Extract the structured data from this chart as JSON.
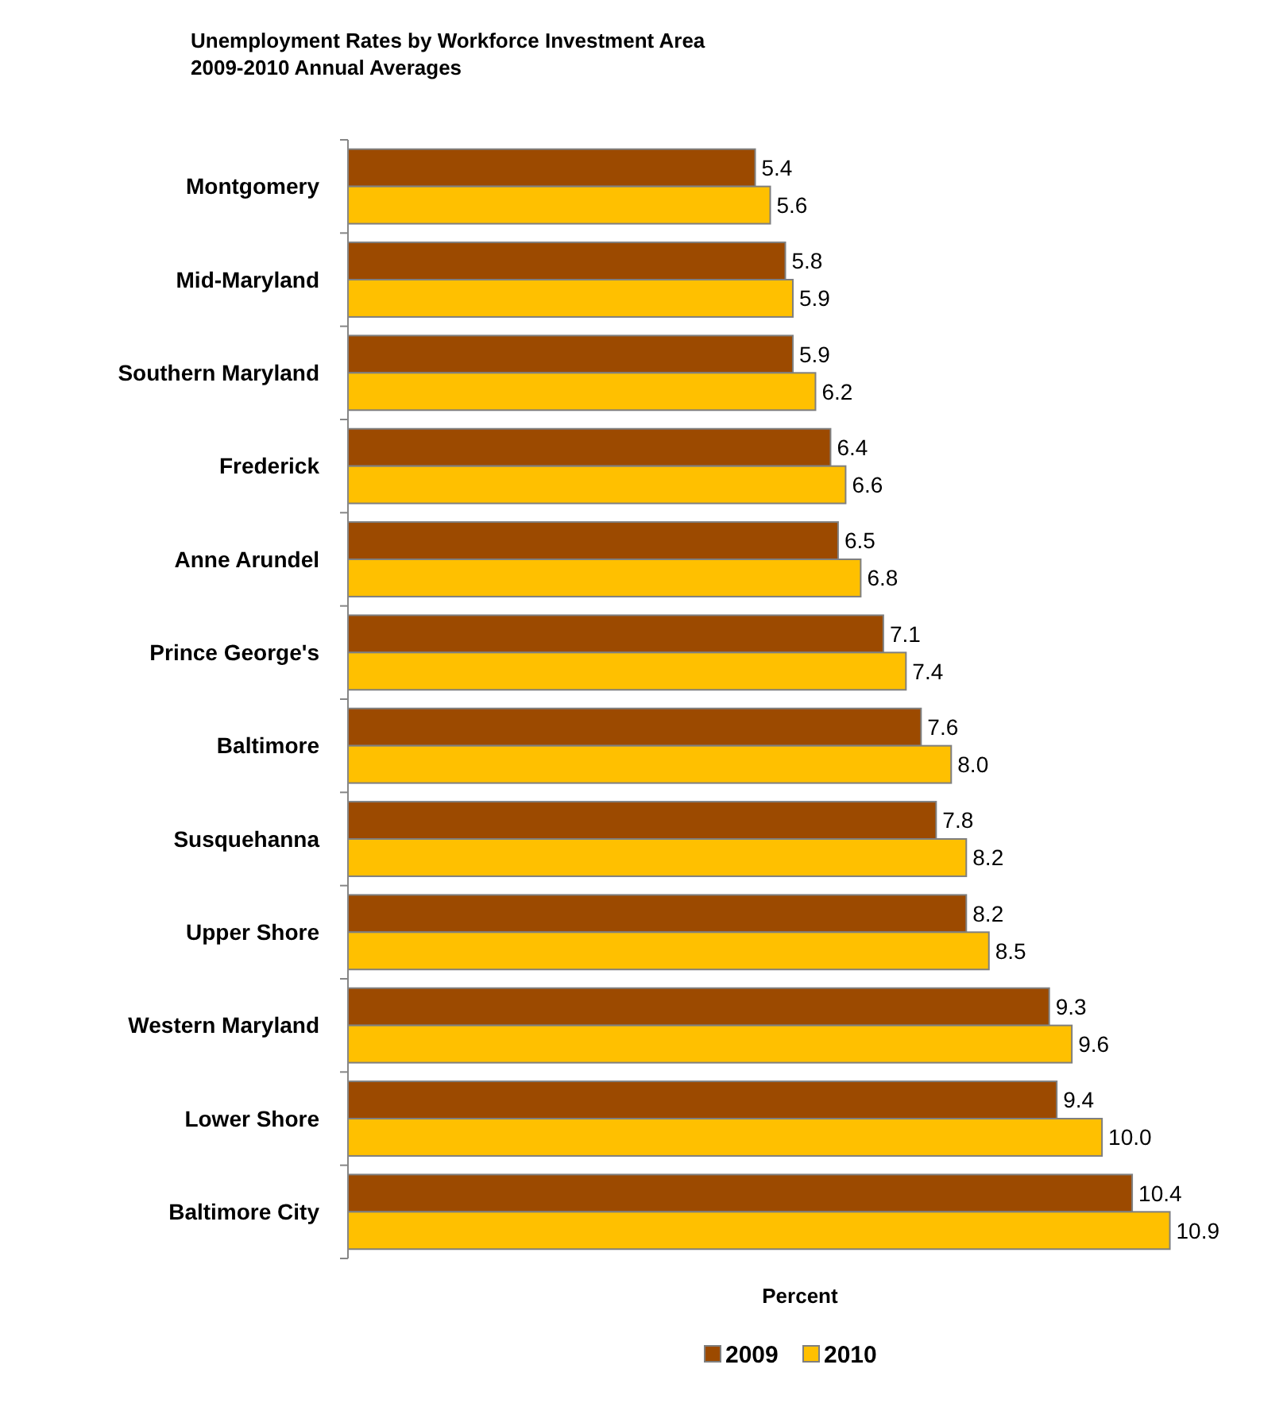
{
  "chart_data": {
    "type": "bar",
    "orientation": "horizontal",
    "title": "Unemployment Rates by Workforce Investment Area\n2009-2010 Annual Averages",
    "xlabel": "Percent",
    "categories": [
      "Montgomery",
      "Mid-Maryland",
      "Southern Maryland",
      "Frederick",
      "Anne Arundel",
      "Prince George's",
      "Baltimore",
      "Susquehanna",
      "Upper Shore",
      "Western Maryland",
      "Lower Shore",
      "Baltimore City"
    ],
    "series": [
      {
        "name": "2009",
        "color": "#9c4a00",
        "values": [
          5.4,
          5.8,
          5.9,
          6.4,
          6.5,
          7.1,
          7.6,
          7.8,
          8.2,
          9.3,
          9.4,
          10.4
        ],
        "value_labels": [
          "5.4",
          "5.8",
          "5.9",
          "6.4",
          "6.5",
          "7.1",
          "7.6",
          "7.8",
          "8.2",
          "9.3",
          "9.4",
          "10.4"
        ]
      },
      {
        "name": "2010",
        "color": "#ffc000",
        "values": [
          5.6,
          5.9,
          6.2,
          6.6,
          6.8,
          7.4,
          8.0,
          8.2,
          8.5,
          9.6,
          10.0,
          10.9
        ],
        "value_labels": [
          "5.6",
          "5.9",
          "6.2",
          "6.6",
          "6.8",
          "7.4",
          "8.0",
          "8.2",
          "8.5",
          "9.6",
          "10.0",
          "10.9"
        ]
      }
    ],
    "tick_labels": "y",
    "legend": "bottom"
  }
}
